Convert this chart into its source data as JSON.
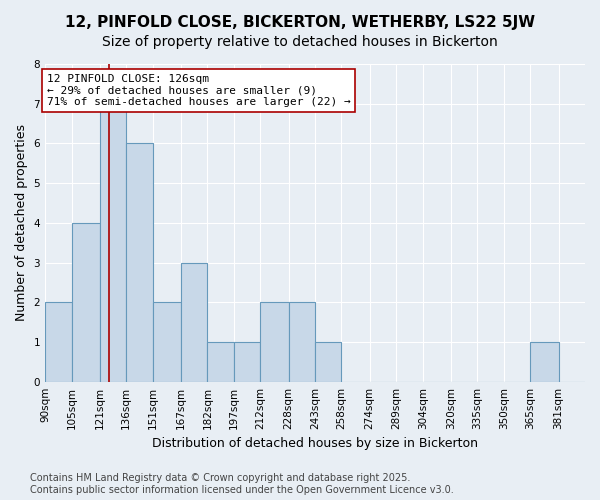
{
  "title": "12, PINFOLD CLOSE, BICKERTON, WETHERBY, LS22 5JW",
  "subtitle": "Size of property relative to detached houses in Bickerton",
  "xlabel": "Distribution of detached houses by size in Bickerton",
  "ylabel": "Number of detached properties",
  "bins": [
    90,
    105,
    121,
    136,
    151,
    167,
    182,
    197,
    212,
    228,
    243,
    258,
    274,
    289,
    304,
    320,
    335,
    350,
    365,
    381,
    396
  ],
  "counts": [
    2,
    4,
    7,
    6,
    2,
    3,
    1,
    1,
    2,
    2,
    1,
    0,
    0,
    0,
    0,
    0,
    0,
    0,
    1,
    0
  ],
  "bar_color": "#c8d8e8",
  "bar_edge_color": "#6699bb",
  "property_line_x": 126,
  "property_line_color": "#aa0000",
  "annotation_text": "12 PINFOLD CLOSE: 126sqm\n← 29% of detached houses are smaller (9)\n71% of semi-detached houses are larger (22) →",
  "annotation_box_color": "#ffffff",
  "annotation_box_edge_color": "#aa0000",
  "ylim": [
    0,
    8
  ],
  "yticks": [
    0,
    1,
    2,
    3,
    4,
    5,
    6,
    7,
    8
  ],
  "background_color": "#e8eef4",
  "plot_background_color": "#e8eef4",
  "grid_color": "#ffffff",
  "footer_text": "Contains HM Land Registry data © Crown copyright and database right 2025.\nContains public sector information licensed under the Open Government Licence v3.0.",
  "title_fontsize": 11,
  "subtitle_fontsize": 10,
  "xlabel_fontsize": 9,
  "ylabel_fontsize": 9,
  "tick_fontsize": 7.5,
  "annotation_fontsize": 8,
  "footer_fontsize": 7
}
